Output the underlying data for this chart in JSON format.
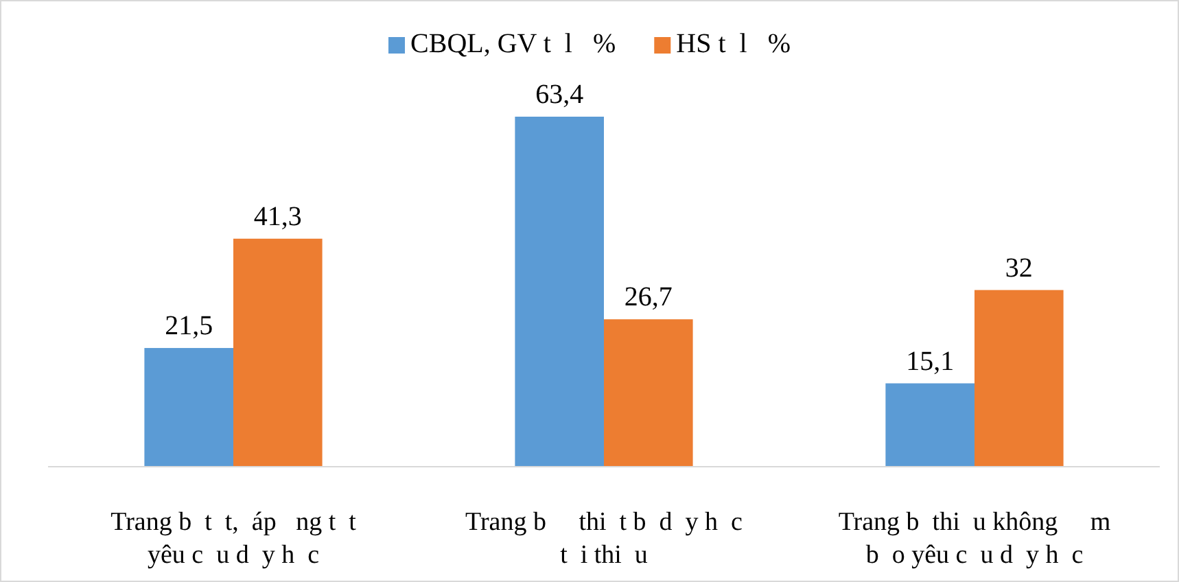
{
  "chart_data": {
    "type": "bar",
    "categories": [
      "Trang b  t  t,  áp   ng t  t\nyêu c  u d  y h  c",
      "Trang b     thi  t b  d  y h  c\nt  i thi  u",
      "Trang b  thi  u không     m\nb  o yêu c  u d  y h  c"
    ],
    "series": [
      {
        "name": "CBQL, GV t  l   %",
        "color": "#5b9bd5",
        "values": [
          21.5,
          63.4,
          15.1
        ],
        "value_labels": [
          "21,5",
          "63,4",
          "15,1"
        ]
      },
      {
        "name": "HS t  l   %",
        "color": "#ed7d31",
        "values": [
          41.3,
          26.7,
          32
        ],
        "value_labels": [
          "41,3",
          "26,7",
          "32"
        ]
      }
    ],
    "legend": "top"
  }
}
